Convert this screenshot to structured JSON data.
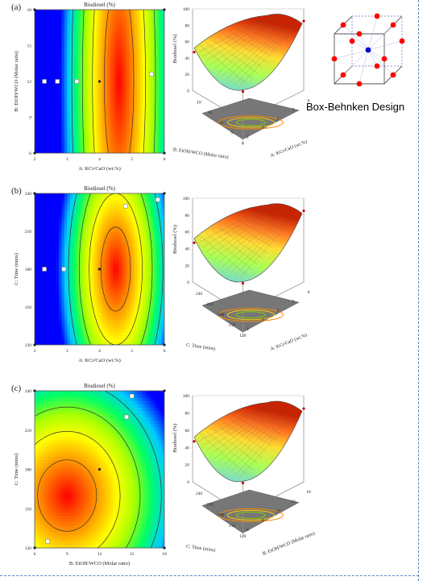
{
  "box_caption": "Box-Behnken Design",
  "colors": {
    "contour": [
      "#0000ff",
      "#00ccff",
      "#00ff66",
      "#aaff00",
      "#ffff00",
      "#ffaa00",
      "#ff5500",
      "#ff0000"
    ],
    "dashed_border": "#4f81bd",
    "design_point": "#ff0000",
    "center_point": "#0000cc"
  },
  "chart_data": [
    {
      "type": "heatmap",
      "panel_label": "(a)",
      "title": "Biodiesel (%)",
      "xlabel": "A: KCr/CaO (wt.%)",
      "ylabel": "B: EtOH/WCO (Molar ratio)",
      "x_ticks": [
        "2",
        "3",
        "4",
        "5",
        "6"
      ],
      "y_ticks": [
        "6",
        "9",
        "12",
        "15",
        "18"
      ],
      "xlim": [
        2,
        6
      ],
      "ylim": [
        6,
        18
      ],
      "optimum": {
        "x": 4.6,
        "y": 12
      },
      "design_points": [
        [
          2,
          18
        ],
        [
          2,
          6
        ],
        [
          6,
          18
        ],
        [
          6,
          6
        ],
        [
          4,
          12
        ]
      ],
      "contour_labels": [
        {
          "x": 2.3,
          "y": 12,
          "label": "—"
        },
        {
          "x": 2.7,
          "y": 12,
          "label": "—"
        },
        {
          "x": 3.3,
          "y": 12,
          "label": "—"
        },
        {
          "x": 5.6,
          "y": 12.6,
          "label": "—"
        }
      ]
    },
    {
      "type": "surface",
      "panel_label": "",
      "zlabel": "Biodiesel (%)",
      "z_ticks": [
        "0",
        "20",
        "40",
        "60",
        "80",
        "100"
      ],
      "x_label": "A: KCr/CaO (wt.%)",
      "x_ticks": [
        "2",
        "3",
        "4",
        "5",
        "6"
      ],
      "y_label": "B: EtOH/WCO (Molar ratio)",
      "y_ticks": [
        "6",
        "9",
        "12",
        "15",
        "18"
      ],
      "depth_ticks": [
        "18",
        "15",
        "12",
        "9",
        "6"
      ]
    },
    {
      "type": "heatmap",
      "panel_label": "(b)",
      "title": "Biodiesel (%)",
      "xlabel": "A: KCr/CaO (wt.%)",
      "ylabel": "C: Time (mins)",
      "x_ticks": [
        "2",
        "3",
        "4",
        "5",
        "6"
      ],
      "y_ticks": [
        "120",
        "150",
        "180",
        "210",
        "240"
      ],
      "xlim": [
        2,
        6
      ],
      "ylim": [
        120,
        240
      ],
      "optimum": {
        "x": 4.5,
        "y": 180
      },
      "design_points": [
        [
          2,
          240
        ],
        [
          2,
          120
        ],
        [
          6,
          240
        ],
        [
          6,
          120
        ],
        [
          4,
          180
        ]
      ],
      "contour_labels": [
        {
          "x": 2.3,
          "y": 180,
          "label": "—"
        },
        {
          "x": 2.9,
          "y": 180,
          "label": "—"
        },
        {
          "x": 4.8,
          "y": 230,
          "label": "—"
        },
        {
          "x": 5.8,
          "y": 235,
          "label": "—"
        }
      ]
    },
    {
      "type": "surface",
      "panel_label": "",
      "zlabel": "Biodiesel (%)",
      "z_ticks": [
        "0",
        "20",
        "40",
        "60",
        "80",
        "100"
      ],
      "x_label": "A: KCr/CaO (wt.%)",
      "x_ticks": [
        "2",
        "3",
        "4",
        "5",
        "6"
      ],
      "y_label": "C: Time (mins)",
      "depth_ticks": [
        "240",
        "210",
        "180",
        "150",
        "120"
      ]
    },
    {
      "type": "heatmap",
      "panel_label": "(c)",
      "title": "Biodiesel (%)",
      "xlabel": "B: EtOH/WCO (Molar ratio)",
      "ylabel": "C: Time (mins)",
      "x_ticks": [
        "6",
        "9",
        "12",
        "15",
        "18"
      ],
      "y_ticks": [
        "120",
        "150",
        "180",
        "210",
        "240"
      ],
      "xlim": [
        6,
        18
      ],
      "ylim": [
        120,
        240
      ],
      "optimum": {
        "x": 9,
        "y": 160
      },
      "design_points": [
        [
          6,
          240
        ],
        [
          6,
          120
        ],
        [
          18,
          240
        ],
        [
          18,
          120
        ],
        [
          12,
          180
        ]
      ],
      "contour_labels": [
        {
          "x": 15,
          "y": 236,
          "label": "—"
        },
        {
          "x": 14.5,
          "y": 220,
          "label": "—"
        },
        {
          "x": 7.2,
          "y": 125,
          "label": "—"
        }
      ]
    },
    {
      "type": "surface",
      "panel_label": "",
      "zlabel": "Biodiesel (%)",
      "z_ticks": [
        "0",
        "20",
        "40",
        "60",
        "80",
        "100"
      ],
      "x_label": "B: EtOH/WCO (Molar ratio)",
      "x_ticks": [
        "6",
        "9",
        "12",
        "15",
        "18"
      ],
      "y_label": "C: Time (mins)",
      "depth_ticks": [
        "240",
        "210",
        "180",
        "150",
        "120"
      ]
    }
  ]
}
